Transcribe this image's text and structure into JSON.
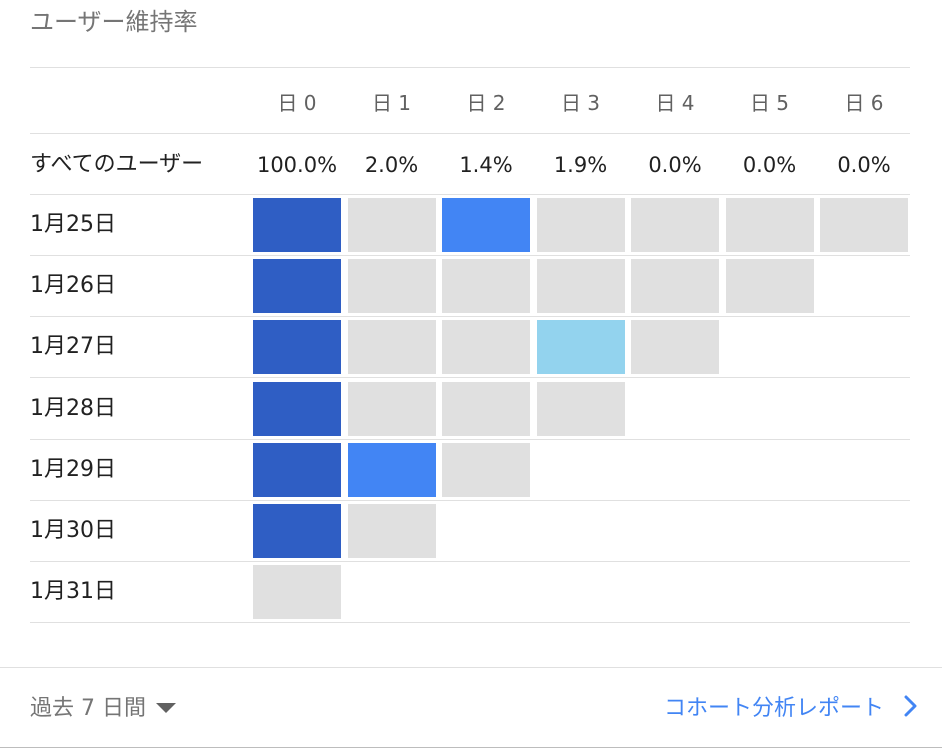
{
  "title": "ユーザー維持率",
  "columns": [
    "日 0",
    "日 1",
    "日 2",
    "日 3",
    "日 4",
    "日 5",
    "日 6"
  ],
  "all_users": {
    "label": "すべてのユーザー",
    "values": [
      "100.0%",
      "2.0%",
      "1.4%",
      "1.9%",
      "0.0%",
      "0.0%",
      "0.0%"
    ]
  },
  "colors": {
    "strong": "#2f5ec4",
    "medium": "#4285f4",
    "light": "#93d3ee",
    "empty": "#e0e0e0"
  },
  "cohorts": [
    {
      "label": "1月25日",
      "cells": [
        "strong",
        "empty",
        "medium",
        "empty",
        "empty",
        "empty",
        "empty"
      ]
    },
    {
      "label": "1月26日",
      "cells": [
        "strong",
        "empty",
        "empty",
        "empty",
        "empty",
        "empty"
      ]
    },
    {
      "label": "1月27日",
      "cells": [
        "strong",
        "empty",
        "empty",
        "light",
        "empty"
      ]
    },
    {
      "label": "1月28日",
      "cells": [
        "strong",
        "empty",
        "empty",
        "empty"
      ]
    },
    {
      "label": "1月29日",
      "cells": [
        "strong",
        "medium",
        "empty"
      ]
    },
    {
      "label": "1月30日",
      "cells": [
        "strong",
        "empty"
      ]
    },
    {
      "label": "1月31日",
      "cells": [
        "empty"
      ]
    }
  ],
  "footer": {
    "range_label": "過去 7 日間",
    "range_icon": "caret-down-icon",
    "report_link": "コホート分析レポート",
    "report_icon": "chevron-right-icon"
  }
}
